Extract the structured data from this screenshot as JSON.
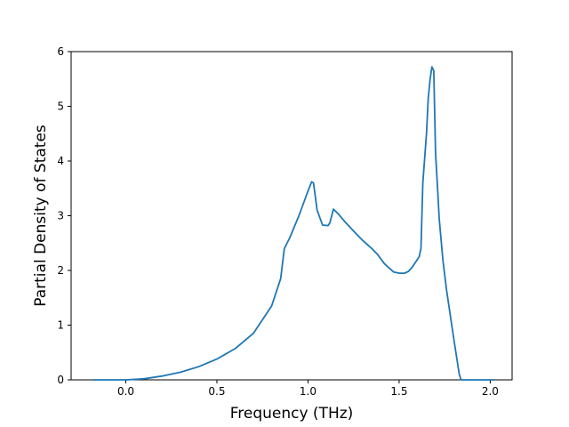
{
  "chart_data": {
    "type": "line",
    "title": "",
    "xlabel": "Frequency (THz)",
    "ylabel": "Partial Density of States",
    "xlim": [
      -0.3,
      2.12
    ],
    "ylim": [
      0,
      6
    ],
    "xticks": [
      0.0,
      0.5,
      1.0,
      1.5,
      2.0
    ],
    "xtick_labels": [
      "0.0",
      "0.5",
      "1.0",
      "1.5",
      "2.0"
    ],
    "yticks": [
      0,
      1,
      2,
      3,
      4,
      5,
      6
    ],
    "ytick_labels": [
      "0",
      "1",
      "2",
      "3",
      "4",
      "5",
      "6"
    ],
    "grid": false,
    "legend": "none",
    "line_color": "#1f77b4",
    "series": [
      {
        "x": [
          -0.18,
          0.0,
          0.1,
          0.2,
          0.3,
          0.4,
          0.5,
          0.6,
          0.7,
          0.8,
          0.85,
          0.87,
          0.9,
          0.95,
          1.0,
          1.02,
          1.03,
          1.05,
          1.08,
          1.11,
          1.12,
          1.14,
          1.17,
          1.2,
          1.25,
          1.3,
          1.35,
          1.38,
          1.42,
          1.47,
          1.5,
          1.53,
          1.55,
          1.57,
          1.59,
          1.61,
          1.62,
          1.63,
          1.65,
          1.66,
          1.67,
          1.68,
          1.69,
          1.7,
          1.71,
          1.72,
          1.74,
          1.76,
          1.8,
          1.83,
          1.84,
          1.85,
          2.02
        ],
        "y": [
          0.0,
          0.0,
          0.02,
          0.07,
          0.14,
          0.24,
          0.38,
          0.57,
          0.85,
          1.35,
          1.85,
          2.4,
          2.6,
          3.0,
          3.45,
          3.62,
          3.6,
          3.1,
          2.83,
          2.82,
          2.87,
          3.12,
          3.02,
          2.9,
          2.72,
          2.55,
          2.4,
          2.3,
          2.12,
          1.97,
          1.95,
          1.95,
          1.98,
          2.05,
          2.15,
          2.25,
          2.4,
          3.6,
          4.5,
          5.15,
          5.5,
          5.72,
          5.65,
          4.15,
          3.55,
          2.95,
          2.2,
          1.65,
          0.75,
          0.1,
          0.0,
          0.0,
          0.0
        ]
      }
    ]
  }
}
